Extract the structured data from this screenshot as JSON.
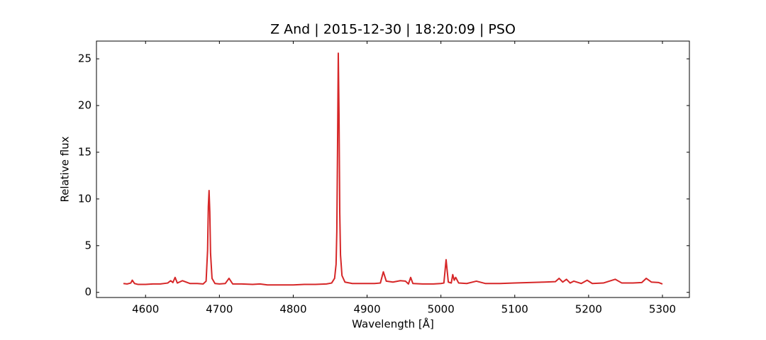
{
  "chart_data": {
    "type": "line",
    "title": "Z And | 2015-12-30 | 18:20:09 | PSO",
    "x_label": "Wavelength [Å]",
    "y_label": "Relative flux",
    "color": "#d62728",
    "x": [
      4570,
      4575,
      4580,
      4582,
      4585,
      4590,
      4600,
      4610,
      4620,
      4630,
      4634,
      4637,
      4640,
      4643,
      4650,
      4660,
      4670,
      4678,
      4682,
      4684,
      4685,
      4686,
      4687,
      4688,
      4690,
      4694,
      4700,
      4708,
      4713,
      4718,
      4730,
      4745,
      4755,
      4765,
      4780,
      4800,
      4815,
      4830,
      4845,
      4852,
      4856,
      4858,
      4859,
      4860,
      4861,
      4862,
      4863,
      4864,
      4866,
      4870,
      4880,
      4895,
      4910,
      4918,
      4922,
      4926,
      4935,
      4945,
      4952,
      4956,
      4959,
      4962,
      4975,
      4990,
      5000,
      5004,
      5007,
      5010,
      5014,
      5016,
      5018,
      5020,
      5024,
      5035,
      5048,
      5060,
      5080,
      5100,
      5120,
      5140,
      5155,
      5160,
      5165,
      5170,
      5175,
      5180,
      5190,
      5198,
      5205,
      5220,
      5236,
      5245,
      5260,
      5272,
      5278,
      5285,
      5295,
      5300
    ],
    "values": [
      0.95,
      0.9,
      1.0,
      1.3,
      0.95,
      0.85,
      0.85,
      0.9,
      0.9,
      1.0,
      1.25,
      1.05,
      1.6,
      1.0,
      1.25,
      0.95,
      0.95,
      0.9,
      1.2,
      4.5,
      9.2,
      10.9,
      8.6,
      4.2,
      1.5,
      0.95,
      0.9,
      0.95,
      1.5,
      0.9,
      0.9,
      0.85,
      0.9,
      0.8,
      0.8,
      0.8,
      0.85,
      0.85,
      0.9,
      1.0,
      1.5,
      3.0,
      6.5,
      15.5,
      25.6,
      19.0,
      8.5,
      4.0,
      1.8,
      1.1,
      0.95,
      0.95,
      0.95,
      1.0,
      2.2,
      1.2,
      1.1,
      1.25,
      1.2,
      0.9,
      1.6,
      0.95,
      0.9,
      0.9,
      0.95,
      1.0,
      3.5,
      1.1,
      1.0,
      1.9,
      1.3,
      1.6,
      1.0,
      0.95,
      1.2,
      0.95,
      0.95,
      1.0,
      1.05,
      1.1,
      1.15,
      1.5,
      1.1,
      1.4,
      1.0,
      1.2,
      0.95,
      1.3,
      0.95,
      1.0,
      1.4,
      1.0,
      1.0,
      1.05,
      1.5,
      1.1,
      1.05,
      0.9
    ],
    "xlim": [
      4533.5,
      5336.5
    ],
    "ylim": [
      -0.55,
      26.9
    ],
    "xticks": [
      4600,
      4700,
      4800,
      4900,
      5000,
      5100,
      5200,
      5300
    ],
    "yticks": [
      0,
      5,
      10,
      15,
      20,
      25
    ],
    "grid": false
  }
}
